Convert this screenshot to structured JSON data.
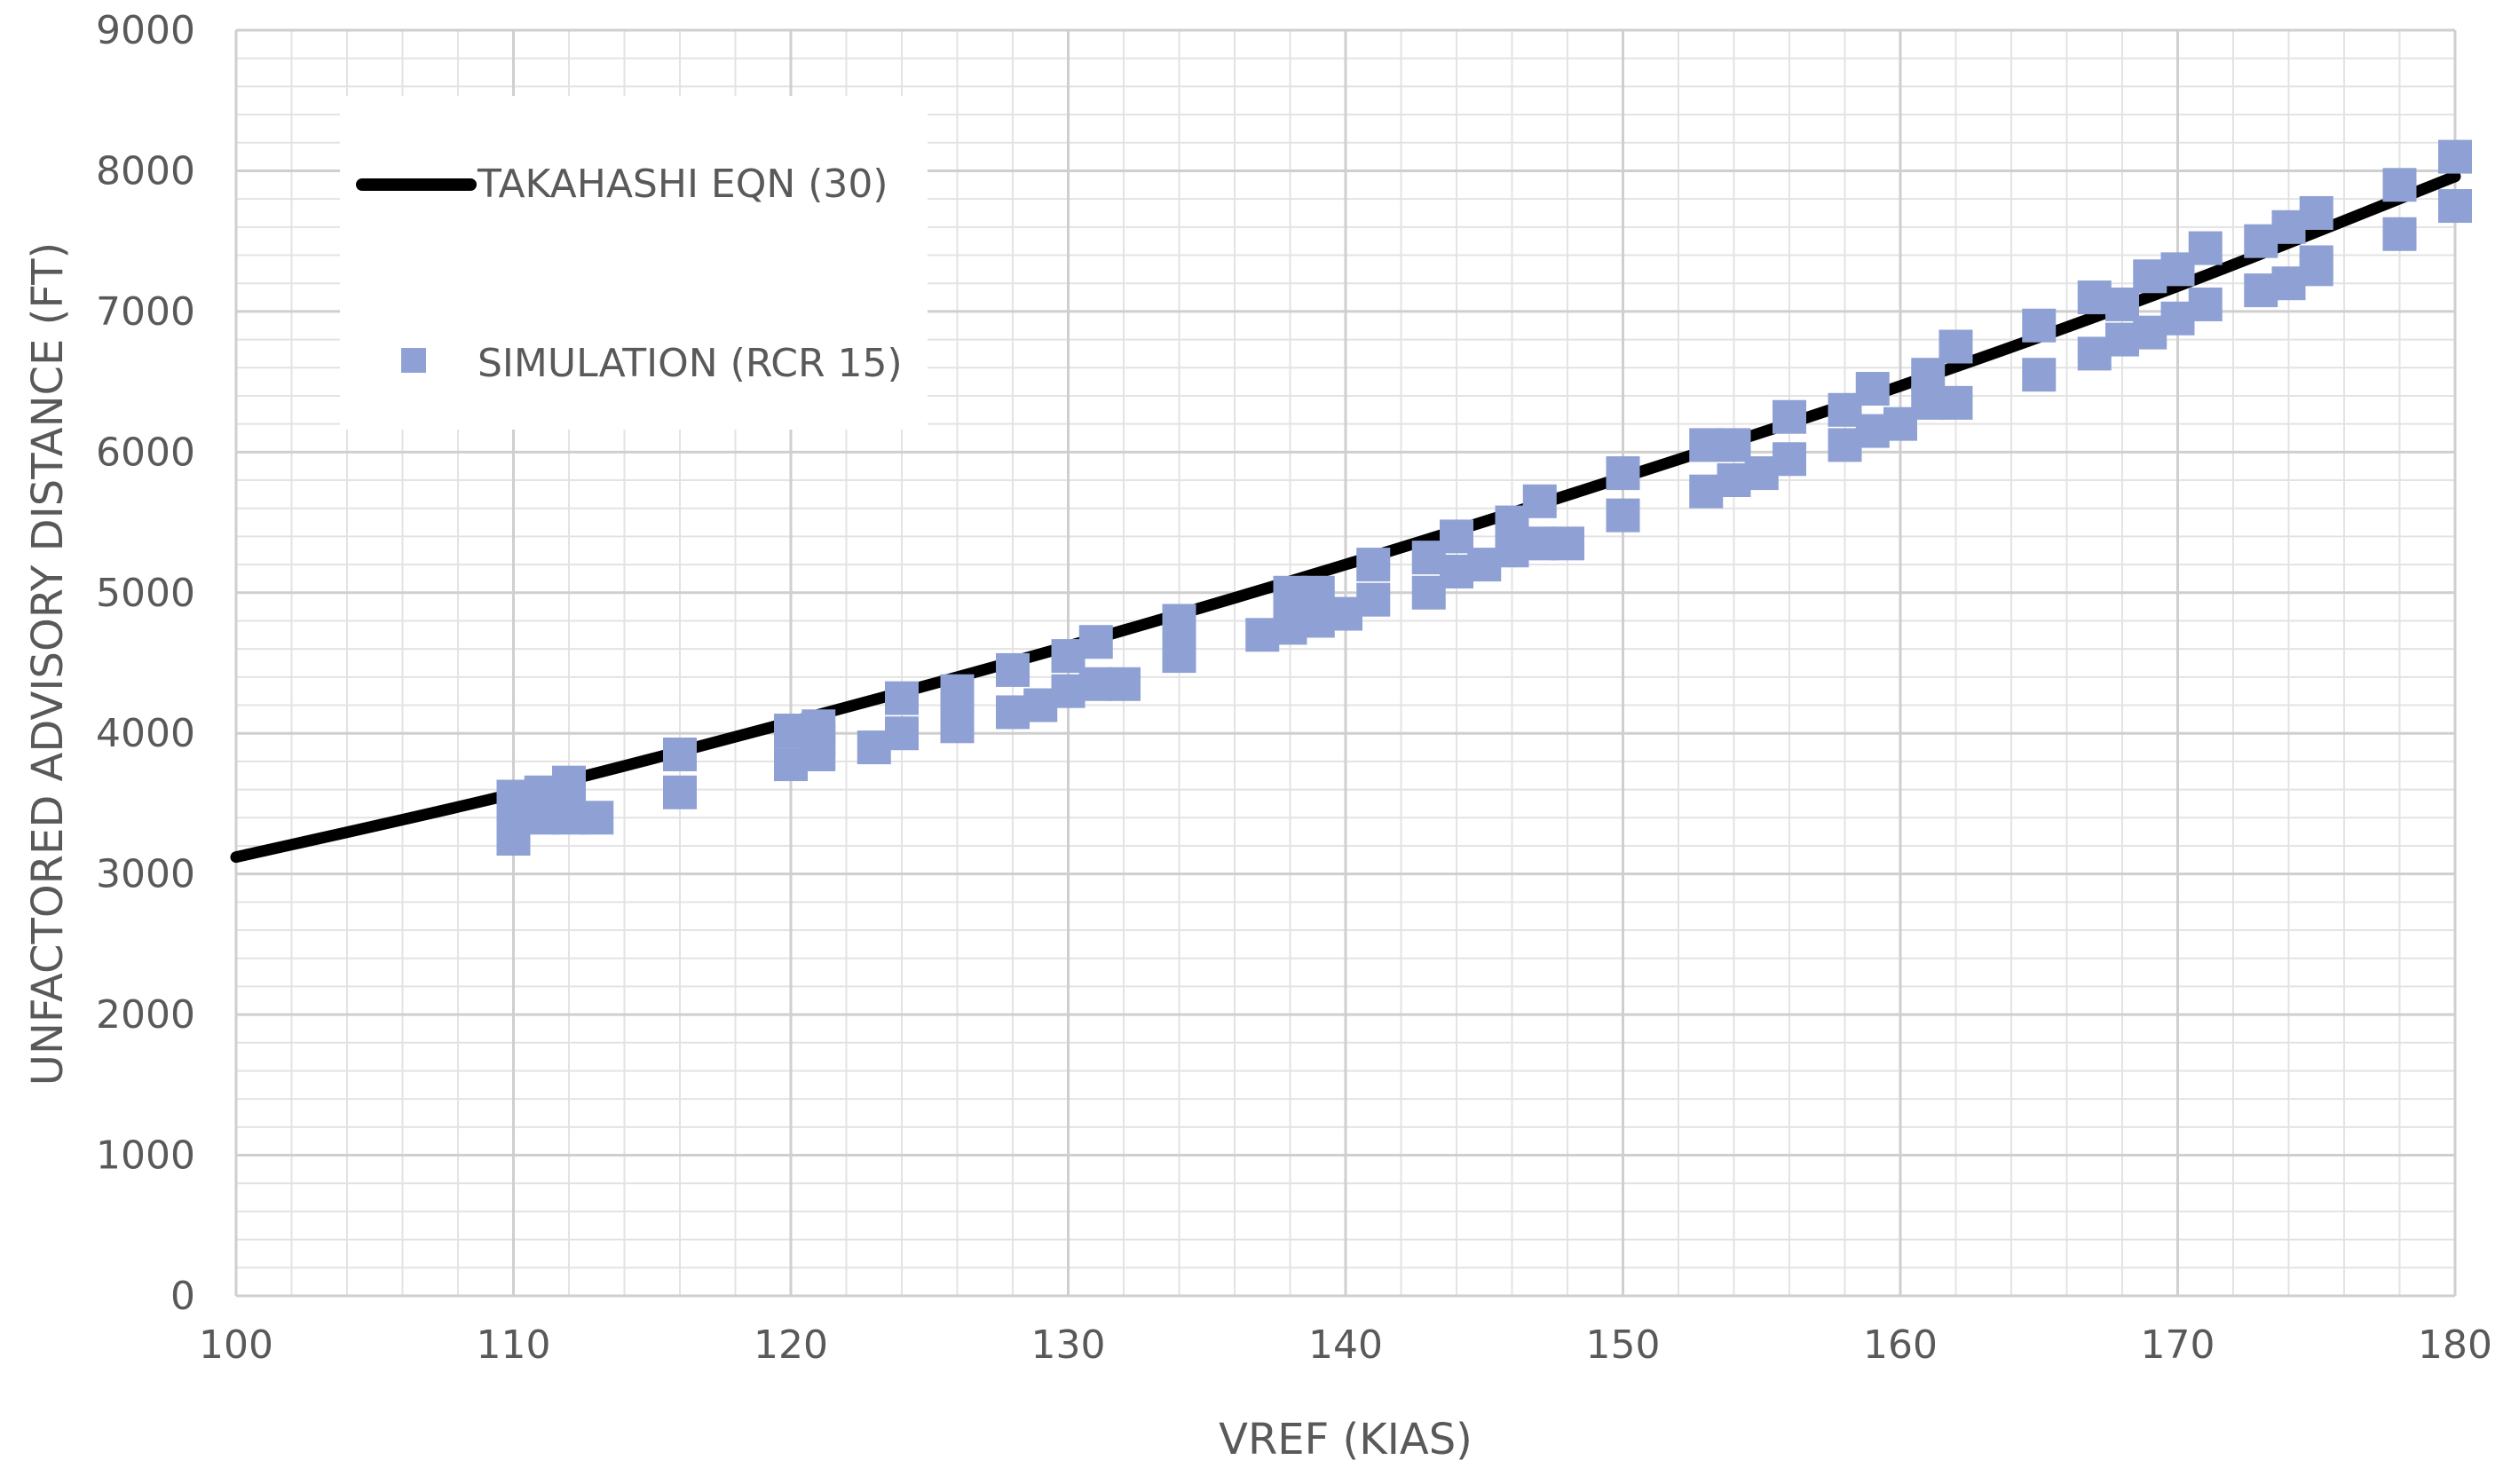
{
  "chart_data": {
    "type": "scatter",
    "xlabel": "VREF (KIAS)",
    "ylabel": "UNFACTORED ADVISORY DISTANCE (FT)",
    "xlim": [
      100,
      180
    ],
    "ylim": [
      0,
      9000
    ],
    "x_ticks": [
      100,
      110,
      120,
      130,
      140,
      150,
      160,
      170,
      180
    ],
    "y_ticks": [
      0,
      1000,
      2000,
      3000,
      4000,
      5000,
      6000,
      7000,
      8000,
      9000
    ],
    "grid": "major and minor",
    "legend_position": "top-left",
    "series": [
      {
        "name": "TAKAHASHI EQN (30)",
        "kind": "line",
        "color": "#000000",
        "x": [
          100,
          110,
          120,
          130,
          140,
          150,
          160,
          170,
          180
        ],
        "y": [
          3120,
          3570,
          4080,
          4620,
          5200,
          5820,
          6470,
          7180,
          7960
        ]
      },
      {
        "name": "SIMULATION (RCR 15)",
        "kind": "scatter",
        "color": "#8FA1D4",
        "x": [
          110,
          110,
          110,
          110,
          111,
          111,
          111,
          112,
          112,
          112,
          113,
          116,
          116,
          120,
          120,
          121,
          121,
          121,
          123,
          124,
          124,
          126,
          126,
          126,
          128,
          128,
          129,
          130,
          130,
          131,
          131,
          132,
          134,
          134,
          134,
          137,
          138,
          138,
          138,
          139,
          139,
          140,
          141,
          141,
          143,
          143,
          144,
          144,
          145,
          146,
          146,
          146,
          147,
          147,
          148,
          150,
          150,
          153,
          153,
          154,
          154,
          155,
          156,
          156,
          158,
          158,
          159,
          159,
          160,
          161,
          161,
          162,
          162,
          165,
          165,
          167,
          167,
          168,
          168,
          169,
          169,
          170,
          170,
          171,
          171,
          173,
          173,
          174,
          174,
          175,
          175,
          175,
          178,
          178,
          180,
          180
        ],
        "y": [
          3550,
          3450,
          3350,
          3250,
          3580,
          3500,
          3400,
          3650,
          3420,
          3400,
          3400,
          3850,
          3580,
          4020,
          3780,
          4050,
          3950,
          3850,
          3900,
          4250,
          4000,
          4300,
          4200,
          4050,
          4450,
          4150,
          4200,
          4550,
          4300,
          4650,
          4350,
          4350,
          4800,
          4700,
          4550,
          4700,
          5000,
          4900,
          4750,
          5000,
          4800,
          4850,
          5200,
          4950,
          5250,
          5000,
          5400,
          5150,
          5200,
          5500,
          5400,
          5300,
          5650,
          5350,
          5350,
          5850,
          5550,
          6050,
          5720,
          6050,
          5800,
          5850,
          6250,
          5950,
          6300,
          6050,
          6450,
          6150,
          6200,
          6550,
          6350,
          6750,
          6350,
          6900,
          6550,
          7100,
          6700,
          7050,
          6800,
          7250,
          6850,
          7300,
          6950,
          7450,
          7050,
          7500,
          7150,
          7600,
          7200,
          7700,
          7350,
          7300,
          7900,
          7550,
          8100,
          7750
        ]
      }
    ]
  }
}
